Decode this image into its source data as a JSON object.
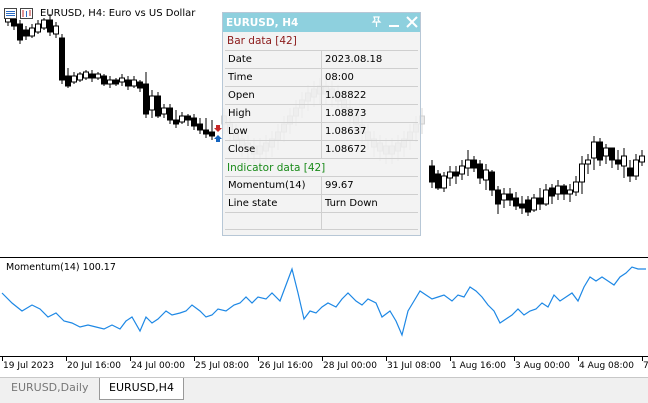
{
  "chart": {
    "title": "EURUSD, H4:  Euro vs US Dollar",
    "up_color": "#000000",
    "down_color": "#000000",
    "line_color": "#1e88e5"
  },
  "indicator": {
    "label": "Momentum(14) 100.17"
  },
  "time_axis": {
    "labels": [
      "19 Jul 2023",
      "20 Jul 16:00",
      "24 Jul 00:00",
      "25 Jul 08:00",
      "26 Jul 16:00",
      "28 Jul 00:00",
      "31 Jul 08:00",
      "1 Aug 16:00",
      "3 Aug 00:00",
      "4 Aug 08:00",
      "7"
    ]
  },
  "tabs": [
    {
      "label": "EURUSD,Daily",
      "active": false
    },
    {
      "label": "EURUSD,H4",
      "active": true
    }
  ],
  "panel": {
    "title": "EURUSD, H4",
    "bar_section": "Bar data [42]",
    "bar_rows": [
      {
        "key": "Date",
        "value": "2023.08.18"
      },
      {
        "key": "Time",
        "value": "08:00"
      },
      {
        "key": "Open",
        "value": "1.08822"
      },
      {
        "key": "High",
        "value": "1.08873"
      },
      {
        "key": "Low",
        "value": "1.08637"
      },
      {
        "key": "Close",
        "value": "1.08672"
      }
    ],
    "indicator_section": "Indicator data [42]",
    "indicator_rows": [
      {
        "key": "Momentum(14)",
        "value": "99.67"
      },
      {
        "key": "Line state",
        "value": "Turn Down"
      }
    ],
    "colors": {
      "title_bg": "#8ed0de",
      "bar_section": "#8b1a1a",
      "indicator_section": "#1a8b1a"
    }
  }
}
